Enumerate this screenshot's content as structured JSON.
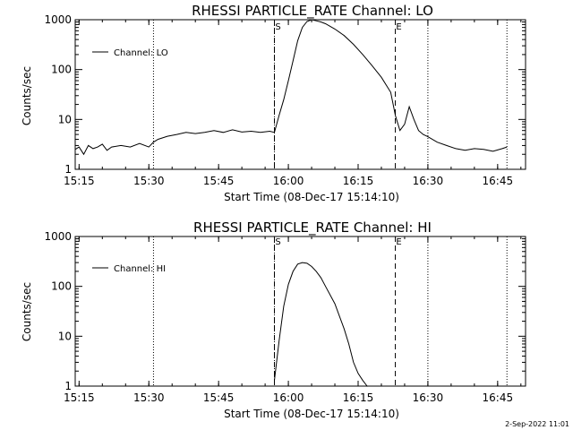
{
  "chart_data": [
    {
      "type": "line",
      "title": "RHESSI PARTICLE_RATE Channel: LO",
      "xlabel": "Start Time (08-Dec-17 15:14:10)",
      "ylabel": "Counts/sec",
      "yscale": "log",
      "ylim": [
        1,
        1000
      ],
      "xlim": [
        "15:14:10",
        "16:51"
      ],
      "x_ticks": [
        "15:15",
        "15:30",
        "15:45",
        "16:00",
        "16:15",
        "16:30",
        "16:45"
      ],
      "y_ticks": [
        "1",
        "10",
        "100",
        "1000"
      ],
      "legend": {
        "placement": "top-left",
        "entries": [
          "Channel: LO"
        ]
      },
      "markers": {
        "S": {
          "label": "S",
          "time": "15:57"
        },
        "E": {
          "label": "E",
          "time": "16:23"
        }
      },
      "dotted_times": [
        "15:31",
        "15:57",
        "16:30",
        "16:47"
      ],
      "series": [
        {
          "name": "Channel: LO",
          "x": [
            "15:14:10",
            "15:15",
            "15:16",
            "15:17",
            "15:18",
            "15:19",
            "15:20",
            "15:21",
            "15:22",
            "15:24",
            "15:26",
            "15:28",
            "15:30",
            "15:31",
            "15:32",
            "15:34",
            "15:36",
            "15:38",
            "15:40",
            "15:42",
            "15:44",
            "15:46",
            "15:48",
            "15:50",
            "15:52",
            "15:54",
            "15:56",
            "15:57",
            "15:58",
            "15:59",
            "16:00",
            "16:01",
            "16:02",
            "16:03",
            "16:04",
            "16:05",
            "16:06",
            "16:07",
            "16:08",
            "16:10",
            "16:12",
            "16:14",
            "16:16",
            "16:18",
            "16:20",
            "16:22",
            "16:23",
            "16:24",
            "16:25",
            "16:26",
            "16:27",
            "16:28",
            "16:29",
            "16:30",
            "16:32",
            "16:34",
            "16:36",
            "16:38",
            "16:40",
            "16:42",
            "16:44",
            "16:46",
            "16:47"
          ],
          "values": [
            2.5,
            2.8,
            2.0,
            3.0,
            2.6,
            2.8,
            3.2,
            2.4,
            2.8,
            3.0,
            2.8,
            3.3,
            2.8,
            3.5,
            4.0,
            4.6,
            5.0,
            5.5,
            5.2,
            5.5,
            6.0,
            5.5,
            6.2,
            5.6,
            5.8,
            5.5,
            5.8,
            5.5,
            12,
            25,
            60,
            150,
            380,
            700,
            920,
            1000,
            950,
            900,
            830,
            650,
            480,
            320,
            200,
            120,
            70,
            35,
            12,
            6,
            8,
            18,
            10,
            6,
            5,
            4.5,
            3.5,
            3.0,
            2.6,
            2.4,
            2.6,
            2.5,
            2.3,
            2.6,
            2.8
          ]
        }
      ]
    },
    {
      "type": "line",
      "title": "RHESSI PARTICLE_RATE Channel: HI",
      "xlabel": "Start Time (08-Dec-17 15:14:10)",
      "ylabel": "Counts/sec",
      "yscale": "log",
      "ylim": [
        1,
        1000
      ],
      "xlim": [
        "15:14:10",
        "16:51"
      ],
      "x_ticks": [
        "15:15",
        "15:30",
        "15:45",
        "16:00",
        "16:15",
        "16:30",
        "16:45"
      ],
      "y_ticks": [
        "1",
        "10",
        "100",
        "1000"
      ],
      "legend": {
        "placement": "top-left",
        "entries": [
          "Channel: HI"
        ]
      },
      "markers": {
        "S": {
          "label": "S",
          "time": "15:57"
        },
        "E": {
          "label": "E",
          "time": "16:23"
        }
      },
      "dotted_times": [
        "15:31",
        "15:57",
        "16:30",
        "16:47"
      ],
      "series": [
        {
          "name": "Channel: HI",
          "x": [
            "15:57",
            "15:58",
            "15:59",
            "16:00",
            "16:01",
            "16:02",
            "16:03",
            "16:04",
            "16:05",
            "16:06",
            "16:07",
            "16:08",
            "16:10",
            "16:12",
            "16:13",
            "16:14",
            "16:15",
            "16:16",
            "16:17"
          ],
          "values": [
            1.3,
            8,
            40,
            110,
            200,
            280,
            300,
            290,
            250,
            200,
            150,
            100,
            45,
            14,
            7,
            3,
            1.8,
            1.3,
            0.9
          ]
        }
      ]
    }
  ],
  "footer": {
    "date_stamp": "2-Sep-2022 11:01"
  }
}
